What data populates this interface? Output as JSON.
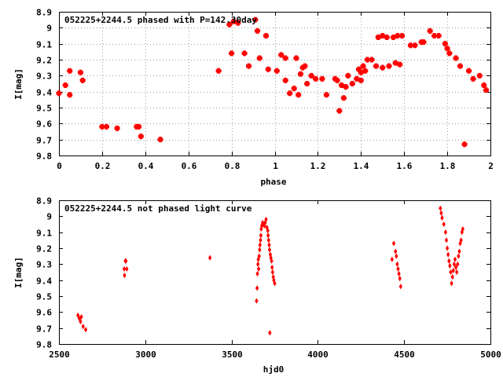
{
  "chart_data": [
    {
      "type": "scatter",
      "title": "052225+2244.5 phased with P=142.30day",
      "xlabel": "phase",
      "ylabel": "I[mag]",
      "xlim": [
        0,
        2
      ],
      "ylim": [
        9.8,
        8.9
      ],
      "y_inverted": true,
      "xticks": [
        "0",
        "0.2",
        "0.4",
        "0.6",
        "0.8",
        "1",
        "1.2",
        "1.4",
        "1.6",
        "1.8",
        "2"
      ],
      "yticks": [
        "8.9",
        "9",
        "9.1",
        "9.2",
        "9.3",
        "9.4",
        "9.5",
        "9.6",
        "9.7",
        "9.8"
      ],
      "grid": true,
      "marker_color": "#ff0000",
      "marker": "cross",
      "series": [
        {
          "points": [
            [
              0.0,
              9.41
            ],
            [
              0.03,
              9.36
            ],
            [
              0.05,
              9.27
            ],
            [
              0.05,
              9.42
            ],
            [
              0.1,
              9.28
            ],
            [
              0.11,
              9.33
            ],
            [
              0.2,
              9.62
            ],
            [
              0.22,
              9.62
            ],
            [
              0.27,
              9.63
            ],
            [
              0.36,
              9.62
            ],
            [
              0.37,
              9.62
            ],
            [
              0.38,
              9.68
            ],
            [
              0.47,
              9.7
            ],
            [
              0.74,
              9.27
            ],
            [
              0.79,
              8.98
            ],
            [
              0.8,
              9.16
            ],
            [
              0.81,
              8.96
            ],
            [
              0.83,
              8.97
            ],
            [
              0.86,
              9.16
            ],
            [
              0.88,
              9.24
            ],
            [
              0.91,
              8.95
            ],
            [
              0.92,
              9.02
            ],
            [
              0.93,
              9.19
            ],
            [
              0.96,
              9.05
            ],
            [
              0.97,
              9.26
            ],
            [
              1.01,
              9.27
            ],
            [
              1.03,
              9.17
            ],
            [
              1.05,
              9.19
            ],
            [
              1.05,
              9.33
            ],
            [
              1.07,
              9.41
            ],
            [
              1.09,
              9.38
            ],
            [
              1.1,
              9.19
            ],
            [
              1.11,
              9.42
            ],
            [
              1.12,
              9.29
            ],
            [
              1.13,
              9.25
            ],
            [
              1.14,
              9.24
            ],
            [
              1.15,
              9.35
            ],
            [
              1.17,
              9.3
            ],
            [
              1.19,
              9.32
            ],
            [
              1.22,
              9.32
            ],
            [
              1.24,
              9.42
            ],
            [
              1.28,
              9.32
            ],
            [
              1.29,
              9.33
            ],
            [
              1.3,
              9.52
            ],
            [
              1.31,
              9.36
            ],
            [
              1.32,
              9.44
            ],
            [
              1.33,
              9.37
            ],
            [
              1.34,
              9.3
            ],
            [
              1.36,
              9.35
            ],
            [
              1.38,
              9.32
            ],
            [
              1.39,
              9.26
            ],
            [
              1.4,
              9.28
            ],
            [
              1.4,
              9.33
            ],
            [
              1.41,
              9.24
            ],
            [
              1.42,
              9.27
            ],
            [
              1.43,
              9.2
            ],
            [
              1.45,
              9.2
            ],
            [
              1.47,
              9.24
            ],
            [
              1.48,
              9.06
            ],
            [
              1.5,
              9.05
            ],
            [
              1.5,
              9.25
            ],
            [
              1.52,
              9.06
            ],
            [
              1.53,
              9.24
            ],
            [
              1.55,
              9.06
            ],
            [
              1.56,
              9.22
            ],
            [
              1.57,
              9.05
            ],
            [
              1.58,
              9.23
            ],
            [
              1.59,
              9.05
            ],
            [
              1.63,
              9.11
            ],
            [
              1.65,
              9.11
            ],
            [
              1.68,
              9.09
            ],
            [
              1.69,
              9.09
            ],
            [
              1.72,
              9.02
            ],
            [
              1.74,
              9.05
            ],
            [
              1.76,
              9.05
            ],
            [
              1.79,
              9.1
            ],
            [
              1.8,
              9.13
            ],
            [
              1.81,
              9.16
            ],
            [
              1.84,
              9.19
            ],
            [
              1.86,
              9.24
            ],
            [
              1.88,
              9.73
            ],
            [
              1.9,
              9.27
            ],
            [
              1.92,
              9.32
            ],
            [
              1.95,
              9.3
            ],
            [
              1.97,
              9.36
            ],
            [
              1.98,
              9.39
            ]
          ]
        }
      ]
    },
    {
      "type": "scatter",
      "title": "052225+2244.5 not phased light curve",
      "xlabel": "hjd0",
      "ylabel": "I[mag]",
      "xlim": [
        2500,
        5000
      ],
      "ylim": [
        9.8,
        8.9
      ],
      "y_inverted": true,
      "xticks": [
        "2500",
        "3000",
        "3500",
        "4000",
        "4500",
        "5000"
      ],
      "yticks": [
        "8.9",
        "9",
        "9.1",
        "9.2",
        "9.3",
        "9.4",
        "9.5",
        "9.6",
        "9.7",
        "9.8"
      ],
      "grid": false,
      "marker_color": "#ff0000",
      "marker": "diamond",
      "series": [
        {
          "points": [
            [
              2610,
              9.62
            ],
            [
              2618,
              9.64
            ],
            [
              2625,
              9.66
            ],
            [
              2630,
              9.63
            ],
            [
              2640,
              9.69
            ],
            [
              2655,
              9.71
            ],
            [
              2878,
              9.33
            ],
            [
              2880,
              9.37
            ],
            [
              2885,
              9.28
            ],
            [
              2888,
              9.28
            ],
            [
              2893,
              9.33
            ],
            [
              3375,
              9.26
            ],
            [
              3645,
              9.53
            ],
            [
              3648,
              9.45
            ],
            [
              3650,
              9.36
            ],
            [
              3653,
              9.3
            ],
            [
              3655,
              9.27
            ],
            [
              3657,
              9.33
            ],
            [
              3660,
              9.25
            ],
            [
              3663,
              9.21
            ],
            [
              3665,
              9.18
            ],
            [
              3668,
              9.15
            ],
            [
              3670,
              9.12
            ],
            [
              3672,
              9.08
            ],
            [
              3675,
              9.06
            ],
            [
              3680,
              9.04
            ],
            [
              3685,
              9.05
            ],
            [
              3690,
              9.06
            ],
            [
              3695,
              9.04
            ],
            [
              3700,
              9.02
            ],
            [
              3705,
              9.07
            ],
            [
              3710,
              9.09
            ],
            [
              3712,
              9.12
            ],
            [
              3715,
              9.15
            ],
            [
              3718,
              9.18
            ],
            [
              3720,
              9.21
            ],
            [
              3722,
              9.73
            ],
            [
              3725,
              9.24
            ],
            [
              3728,
              9.26
            ],
            [
              3732,
              9.28
            ],
            [
              3735,
              9.32
            ],
            [
              3738,
              9.35
            ],
            [
              3742,
              9.38
            ],
            [
              3745,
              9.4
            ],
            [
              3750,
              9.42
            ],
            [
              4430,
              9.27
            ],
            [
              4440,
              9.17
            ],
            [
              4450,
              9.22
            ],
            [
              4455,
              9.25
            ],
            [
              4460,
              9.3
            ],
            [
              4465,
              9.33
            ],
            [
              4470,
              9.36
            ],
            [
              4475,
              9.39
            ],
            [
              4480,
              9.44
            ],
            [
              4710,
              8.95
            ],
            [
              4715,
              8.98
            ],
            [
              4720,
              9.01
            ],
            [
              4730,
              9.05
            ],
            [
              4740,
              9.1
            ],
            [
              4745,
              9.15
            ],
            [
              4750,
              9.2
            ],
            [
              4755,
              9.24
            ],
            [
              4760,
              9.28
            ],
            [
              4765,
              9.31
            ],
            [
              4770,
              9.35
            ],
            [
              4775,
              9.42
            ],
            [
              4780,
              9.38
            ],
            [
              4785,
              9.34
            ],
            [
              4790,
              9.3
            ],
            [
              4795,
              9.27
            ],
            [
              4800,
              9.32
            ],
            [
              4805,
              9.35
            ],
            [
              4810,
              9.3
            ],
            [
              4815,
              9.25
            ],
            [
              4820,
              9.22
            ],
            [
              4825,
              9.17
            ],
            [
              4830,
              9.15
            ],
            [
              4835,
              9.1
            ],
            [
              4840,
              9.08
            ]
          ]
        }
      ]
    }
  ]
}
